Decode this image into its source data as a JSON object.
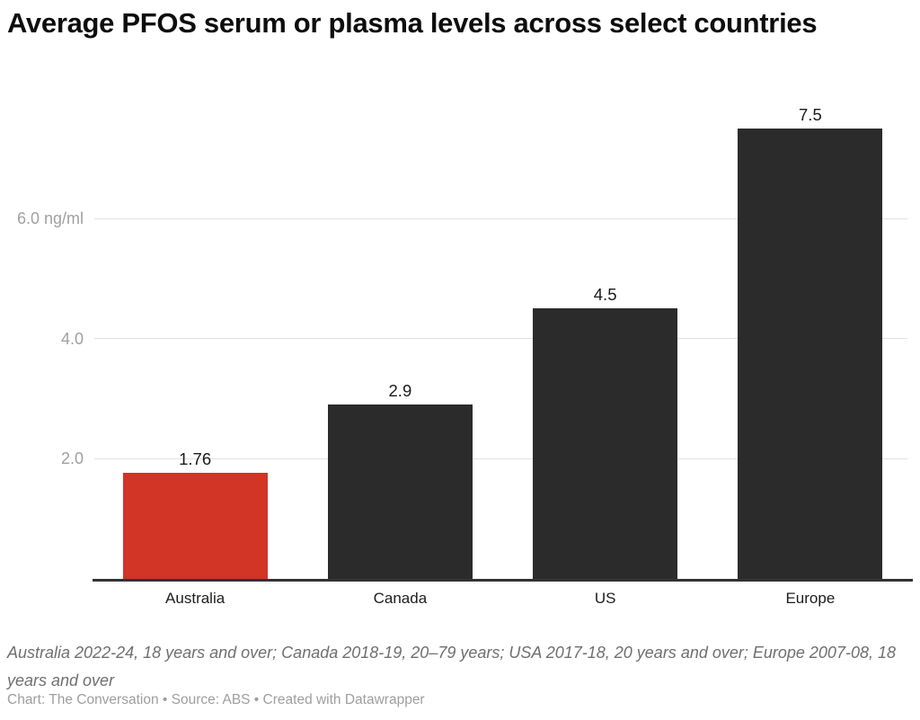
{
  "title": "Average PFOS serum or plasma levels across select countries",
  "chart_data": {
    "type": "bar",
    "title": "Average PFOS serum or plasma levels across select countries",
    "categories": [
      "Australia",
      "Canada",
      "US",
      "Europe"
    ],
    "values": [
      1.76,
      2.9,
      4.5,
      7.5
    ],
    "value_labels": [
      "1.76",
      "2.9",
      "4.5",
      "7.5"
    ],
    "bar_colors": [
      "#d23426",
      "#2b2b2b",
      "#2b2b2b",
      "#2b2b2b"
    ],
    "highlight_category": "Australia",
    "unit": "ng/ml",
    "xlabel": "",
    "ylabel": "ng/ml",
    "ylim": [
      0,
      7.6
    ],
    "grid": true,
    "legend": "none",
    "y_ticks": [
      {
        "value": 2,
        "label": "2.0"
      },
      {
        "value": 4,
        "label": "4.0"
      },
      {
        "value": 6,
        "label": "6.0 ng/ml"
      }
    ]
  },
  "footer": {
    "note": "Australia 2022-24, 18 years and over; Canada 2018-19, 20–79 years; USA 2017-18, 20 years and over; Europe 2007-08, 18 years and over",
    "credit": "Chart: The Conversation • Source: ABS • Created with Datawrapper"
  },
  "colors": {
    "highlight": "#d23426",
    "bar_default": "#2b2b2b",
    "axis": "#333333",
    "gridline": "#e0e0e0",
    "tick_text": "#a0a0a0"
  }
}
